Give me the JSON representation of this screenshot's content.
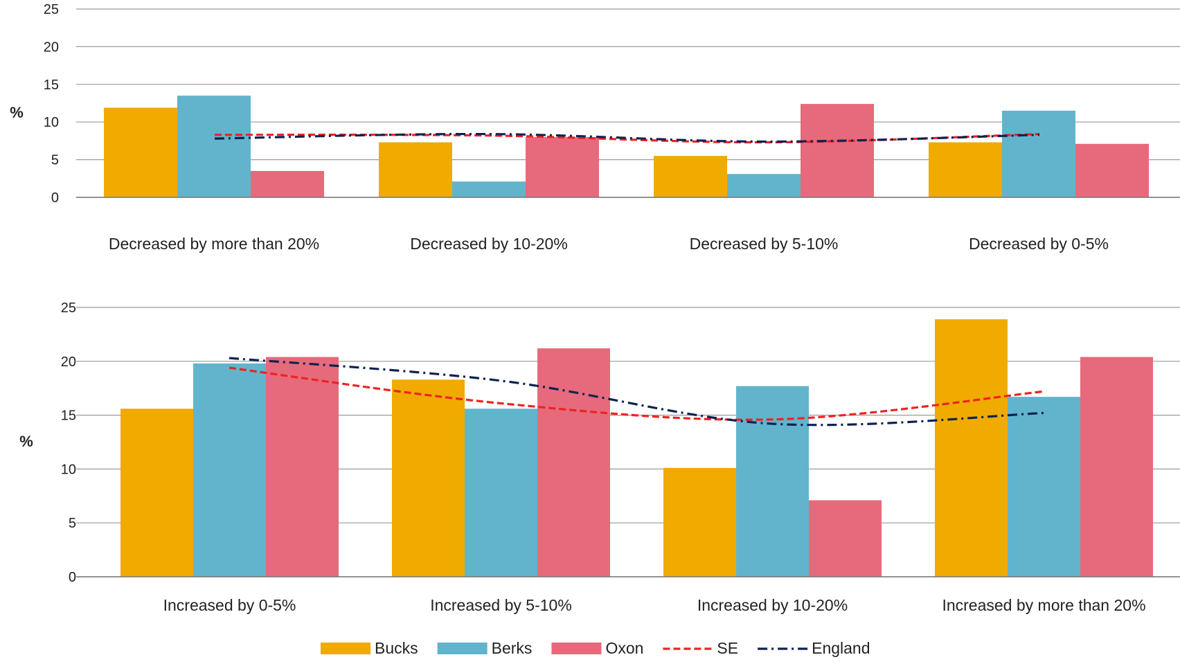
{
  "legend": [
    {
      "key": "bucks",
      "label": "Bucks",
      "kind": "bar",
      "color": "#F0AA00"
    },
    {
      "key": "berks",
      "label": "Berks",
      "kind": "bar",
      "color": "#62B4CC"
    },
    {
      "key": "oxon",
      "label": "Oxon",
      "kind": "bar",
      "color": "#E66A7C"
    },
    {
      "key": "se",
      "label": "SE",
      "kind": "line",
      "color": "#EE2222",
      "dash": "dashed"
    },
    {
      "key": "england",
      "label": "England",
      "kind": "line",
      "color": "#0E2250",
      "dash": "dash-dot"
    }
  ],
  "chart_data": [
    {
      "type": "bar",
      "ylabel": "%",
      "ylim": [
        0,
        25
      ],
      "yticks": [
        0,
        5,
        10,
        15,
        20,
        25
      ],
      "grid": true,
      "categories": [
        "Decreased by more than 20%",
        "Decreased by 10-20%",
        "Decreased by 5-10%",
        "Decreased by 0-5%"
      ],
      "series": [
        {
          "name": "Bucks",
          "kind": "bar",
          "color": "#F0AA00",
          "values": [
            11.9,
            7.3,
            5.5,
            7.3
          ]
        },
        {
          "name": "Berks",
          "kind": "bar",
          "color": "#62B4CC",
          "values": [
            13.5,
            2.1,
            3.1,
            11.5
          ]
        },
        {
          "name": "Oxon",
          "kind": "bar",
          "color": "#E66A7C",
          "values": [
            3.5,
            8.0,
            12.4,
            7.1
          ]
        },
        {
          "name": "SE",
          "kind": "line",
          "color": "#EE2222",
          "values": [
            8.3,
            8.2,
            7.3,
            8.4
          ]
        },
        {
          "name": "England",
          "kind": "line",
          "color": "#0E2250",
          "values": [
            7.8,
            8.4,
            7.4,
            8.3
          ]
        }
      ]
    },
    {
      "type": "bar",
      "ylabel": "%",
      "ylim": [
        0,
        25
      ],
      "yticks": [
        0,
        5,
        10,
        15,
        20,
        25
      ],
      "grid": true,
      "categories": [
        "Increased by 0-5%",
        "Increased by 5-10%",
        "Increased by 10-20%",
        "Increased by more than 20%"
      ],
      "series": [
        {
          "name": "Bucks",
          "kind": "bar",
          "color": "#F0AA00",
          "values": [
            15.6,
            18.3,
            10.1,
            23.9
          ]
        },
        {
          "name": "Berks",
          "kind": "bar",
          "color": "#62B4CC",
          "values": [
            19.8,
            15.6,
            17.7,
            16.7
          ]
        },
        {
          "name": "Oxon",
          "kind": "bar",
          "color": "#E66A7C",
          "values": [
            20.4,
            21.2,
            7.1,
            20.4
          ]
        },
        {
          "name": "SE",
          "kind": "line",
          "color": "#EE2222",
          "values": [
            19.4,
            16.1,
            14.6,
            17.2
          ]
        },
        {
          "name": "England",
          "kind": "line",
          "color": "#0E2250",
          "values": [
            20.3,
            18.2,
            14.2,
            15.2
          ]
        }
      ]
    }
  ]
}
